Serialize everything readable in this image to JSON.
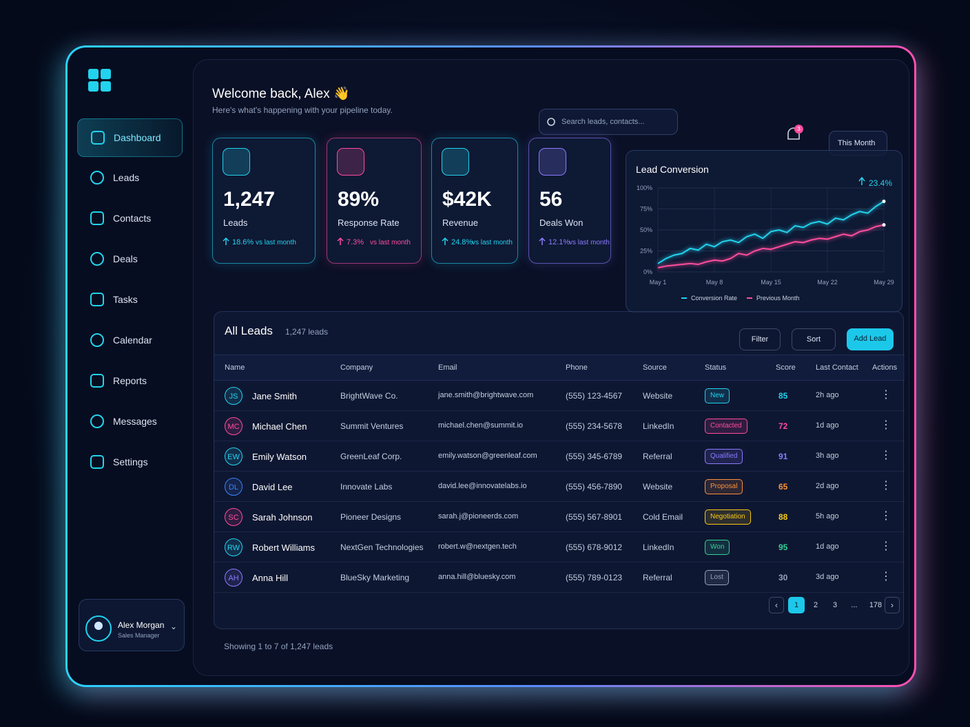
{
  "sidebar": {
    "nav": [
      "Dashboard",
      "Leads",
      "Contacts",
      "Deals",
      "Tasks",
      "Calendar",
      "Reports",
      "Messages",
      "Settings"
    ],
    "user": {
      "name": "Alex Morgan",
      "role": "Sales Manager"
    }
  },
  "header": {
    "title": "Welcome back, Alex 👋",
    "subtitle": "Here's what's happening with your pipeline today.",
    "search_placeholder": "Search leads, contacts...",
    "notifications": "3",
    "period": "This Month"
  },
  "stats": [
    {
      "value": "1,247",
      "label": "Leads",
      "change": "18.6%",
      "note": "vs last month",
      "color": "#22d3ee"
    },
    {
      "value": "89%",
      "label": "Response Rate",
      "change": "7.3%",
      "note": "vs last month",
      "color": "#ff4d9d"
    },
    {
      "value": "$42K",
      "label": "Revenue",
      "change": "24.8%",
      "note": "vs last month",
      "color": "#22d3ee"
    },
    {
      "value": "56",
      "label": "Deals Won",
      "change": "12.1%",
      "note": "vs last month",
      "color": "#8b7bff"
    }
  ],
  "chart_data": {
    "type": "line",
    "title": "Lead Conversion",
    "annotation": "23.4%",
    "categories": [
      "May 1",
      null,
      null,
      null,
      null,
      null,
      null,
      "May 8",
      null,
      null,
      null,
      null,
      null,
      null,
      "May 15",
      null,
      null,
      null,
      null,
      null,
      null,
      "May 22",
      null,
      null,
      null,
      null,
      null,
      null,
      "May 29"
    ],
    "series": [
      {
        "name": "Conversion Rate",
        "color": "#22d3ee",
        "values": [
          10,
          16,
          20,
          22,
          28,
          26,
          33,
          30,
          36,
          38,
          35,
          42,
          45,
          40,
          48,
          50,
          47,
          55,
          53,
          58,
          60,
          57,
          64,
          62,
          68,
          72,
          70,
          78,
          84
        ]
      },
      {
        "name": "Previous Month",
        "color": "#ff4d9d",
        "values": [
          5,
          7,
          8,
          9,
          10,
          9,
          12,
          14,
          13,
          16,
          22,
          20,
          25,
          28,
          27,
          30,
          33,
          36,
          35,
          38,
          40,
          39,
          42,
          45,
          43,
          48,
          50,
          54,
          56
        ]
      }
    ],
    "ylim": [
      0,
      100
    ],
    "yticks": [
      {
        "value": 0,
        "label": "0%"
      },
      {
        "value": 25,
        "label": "25%"
      },
      {
        "value": 50,
        "label": "50%"
      },
      {
        "value": 75,
        "label": "75%"
      },
      {
        "value": 100,
        "label": "100%"
      }
    ],
    "grid": true,
    "legend": "bottom"
  },
  "leads": {
    "title": "All Leads",
    "count": "1,247 leads",
    "buttons": [
      "Filter",
      "Sort",
      "Add Lead"
    ],
    "columns": [
      "Name",
      "Company",
      "Email",
      "Phone",
      "Source",
      "Status",
      "Score",
      "Last Contact",
      "Actions"
    ],
    "rows": [
      [
        "JS",
        "Jane Smith",
        "BrightWave Co.",
        "jane.smith@brightwave.com",
        "(555) 123-4567",
        "Website",
        "New",
        "85",
        "2h ago"
      ],
      [
        "MC",
        "Michael Chen",
        "Summit Ventures",
        "michael.chen@summit.io",
        "(555) 234-5678",
        "LinkedIn",
        "Contacted",
        "72",
        "1d ago"
      ],
      [
        "EW",
        "Emily Watson",
        "GreenLeaf Corp.",
        "emily.watson@greenleaf.com",
        "(555) 345-6789",
        "Referral",
        "Qualified",
        "91",
        "3h ago"
      ],
      [
        "DL",
        "David Lee",
        "Innovate Labs",
        "david.lee@innovatelabs.io",
        "(555) 456-7890",
        "Website",
        "Proposal",
        "65",
        "2d ago"
      ],
      [
        "SC",
        "Sarah Johnson",
        "Pioneer Designs",
        "sarah.j@pioneerds.com",
        "(555) 567-8901",
        "Cold Email",
        "Negotiation",
        "88",
        "5h ago"
      ],
      [
        "RW",
        "Robert Williams",
        "NextGen Technologies",
        "robert.w@nextgen.tech",
        "(555) 678-9012",
        "LinkedIn",
        "Won",
        "95",
        "1d ago"
      ],
      [
        "AH",
        "Anna Hill",
        "BlueSky Marketing",
        "anna.hill@bluesky.com",
        "(555) 789-0123",
        "Referral",
        "Lost",
        "30",
        "3d ago"
      ]
    ],
    "avatar_colors": [
      "#22d3ee",
      "#ff4d9d",
      "#22d3ee",
      "#3b82f6",
      "#ff4d9d",
      "#22d3ee",
      "#8b7bff"
    ],
    "status_colors": {
      "New": "#22d3ee",
      "Contacted": "#ff4d9d",
      "Qualified": "#8b7bff",
      "Proposal": "#fb923c",
      "Negotiation": "#facc15",
      "Won": "#34d399",
      "Lost": "#94a3b8"
    },
    "pagination": [
      "1",
      "2",
      "3",
      "...",
      "178"
    ],
    "footer": "Showing 1 to 7 of 1,247 leads"
  }
}
